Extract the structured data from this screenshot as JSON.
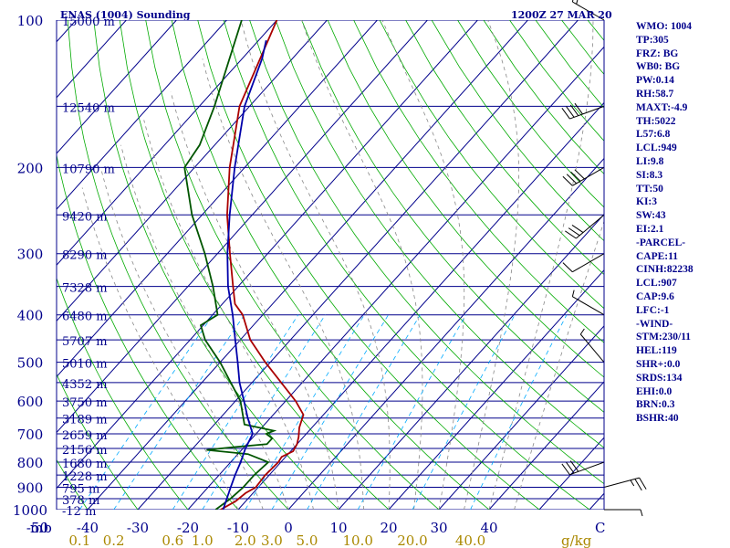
{
  "header": {
    "title": "ENAS (1004) Sounding",
    "time": "1200Z 27 MAR 20"
  },
  "colors": {
    "isobar": "#00008b",
    "isotherm": "#00008b",
    "dry_adiabat": "#00aa00",
    "moist_adiabat": "#888888",
    "mixing_ratio": "#00aaff",
    "temperature": "#aa0000",
    "dewpoint": "#005500",
    "parcel": "#0000aa",
    "labels": "#00008b",
    "mixing_labels": "#aa8800"
  },
  "stats": [
    "WMO: 1004",
    "TP:305",
    "FRZ: BG",
    "WB0: BG",
    "PW:0.14",
    "RH:58.7",
    "MAXT:-4.9",
    "TH:5022",
    "L57:6.8",
    "LCL:949",
    "LI:9.8",
    "SI:8.3",
    "TT:50",
    "KI:3",
    "SW:43",
    "EI:2.1",
    "-PARCEL-",
    "CAPE:11",
    "CINH:82238",
    "LCL:907",
    "CAP:9.6",
    "LFC:-1",
    "-WIND-",
    "STM:230/11",
    "HEL:119",
    "SHR+:0.0",
    "SRDS:134",
    "EHI:0.0",
    "BRN:0.3",
    "BSHR:40"
  ],
  "chart_data": {
    "type": "line",
    "title": "ENAS (1004) Sounding",
    "subtitle": "1200Z 27 MAR 20",
    "y_axis": {
      "label": "mb",
      "scale": "log",
      "range": [
        1000,
        100
      ],
      "ticks": [
        "100",
        "200",
        "300",
        "400",
        "500",
        "600",
        "700",
        "800",
        "900",
        "1000"
      ]
    },
    "x_axis": {
      "label": "C",
      "ticks": [
        "-50",
        "-40",
        "-30",
        "-20",
        "-10",
        "0",
        "10",
        "20",
        "30",
        "40"
      ]
    },
    "mixing_ratio_axis": {
      "label": "g/kg",
      "ticks": [
        "0.1",
        "0.2",
        "0.6",
        "1.0",
        "2.0",
        "3.0",
        "5.0",
        "10.0",
        "20.0",
        "40.0"
      ]
    },
    "height_labels": [
      {
        "p": 100,
        "label": "15000 m"
      },
      {
        "p": 150,
        "label": "12540 m"
      },
      {
        "p": 200,
        "label": "10790 m"
      },
      {
        "p": 250,
        "label": "9420 m"
      },
      {
        "p": 300,
        "label": "8290 m"
      },
      {
        "p": 350,
        "label": "7328 m"
      },
      {
        "p": 400,
        "label": "6480 m"
      },
      {
        "p": 450,
        "label": "5707 m"
      },
      {
        "p": 500,
        "label": "5010 m"
      },
      {
        "p": 550,
        "label": "4352 m"
      },
      {
        "p": 600,
        "label": "3750 m"
      },
      {
        "p": 650,
        "label": "3189 m"
      },
      {
        "p": 700,
        "label": "2659 m"
      },
      {
        "p": 750,
        "label": "2156 m"
      },
      {
        "p": 800,
        "label": "1680 m"
      },
      {
        "p": 850,
        "label": "1228 m"
      },
      {
        "p": 900,
        "label": "795 m"
      },
      {
        "p": 950,
        "label": "378 m"
      },
      {
        "p": 1000,
        "label": "-12 m"
      }
    ],
    "series": [
      {
        "points": [
          [
            1000,
            -13.5
          ],
          [
            960,
            -12.0
          ],
          [
            925,
            -11.5
          ],
          [
            900,
            -10.5
          ],
          [
            850,
            -10.8
          ],
          [
            800,
            -10.5
          ],
          [
            780,
            -10.8
          ],
          [
            760,
            -9.5
          ],
          [
            735,
            -10.0
          ],
          [
            710,
            -11.0
          ],
          [
            700,
            -11.5
          ],
          [
            680,
            -12.5
          ],
          [
            640,
            -14.0
          ],
          [
            600,
            -18.0
          ],
          [
            500,
            -31.0
          ],
          [
            450,
            -38.0
          ],
          [
            400,
            -44.0
          ],
          [
            380,
            -47.5
          ],
          [
            350,
            -51.0
          ],
          [
            300,
            -57.5
          ],
          [
            250,
            -65.0
          ],
          [
            200,
            -73.0
          ],
          [
            150,
            -82.0
          ],
          [
            100,
            -90.0
          ]
        ]
      },
      {
        "points": [
          [
            1000,
            -14.5
          ],
          [
            950,
            -13.5
          ],
          [
            900,
            -13.0
          ],
          [
            850,
            -13.0
          ],
          [
            800,
            -12.5
          ],
          [
            770,
            -18.0
          ],
          [
            755,
            -27.0
          ],
          [
            745,
            -22.0
          ],
          [
            735,
            -16.0
          ],
          [
            715,
            -16.0
          ],
          [
            700,
            -18.0
          ],
          [
            690,
            -17.0
          ],
          [
            670,
            -24.0
          ],
          [
            600,
            -29.0
          ],
          [
            500,
            -40.0
          ],
          [
            450,
            -47.0
          ],
          [
            420,
            -50.5
          ],
          [
            400,
            -49.0
          ],
          [
            350,
            -55.0
          ],
          [
            300,
            -62.5
          ],
          [
            250,
            -72.0
          ],
          [
            200,
            -82.0
          ],
          [
            180,
            -83.0
          ],
          [
            150,
            -87.0
          ],
          [
            100,
            -97.0
          ]
        ]
      },
      {
        "points": [
          [
            1000,
            -13.0
          ],
          [
            900,
            -15.5
          ],
          [
            850,
            -16.8
          ],
          [
            800,
            -18.0
          ],
          [
            750,
            -19.5
          ],
          [
            700,
            -20.7
          ],
          [
            650,
            -24.5
          ],
          [
            600,
            -28.3
          ],
          [
            550,
            -32.5
          ],
          [
            500,
            -36.5
          ],
          [
            450,
            -41.0
          ],
          [
            400,
            -46.0
          ],
          [
            350,
            -52.0
          ],
          [
            300,
            -58.0
          ],
          [
            250,
            -64.5
          ],
          [
            200,
            -72.0
          ],
          [
            150,
            -81.0
          ],
          [
            120,
            -86.0
          ],
          [
            110,
            -88.5
          ]
        ]
      }
    ],
    "wind_barbs": [
      {
        "p": 100,
        "dir": 300,
        "kt": 15
      },
      {
        "p": 150,
        "dir": 250,
        "kt": 40
      },
      {
        "p": 200,
        "dir": 240,
        "kt": 40
      },
      {
        "p": 250,
        "dir": 230,
        "kt": 30
      },
      {
        "p": 300,
        "dir": 240,
        "kt": 10
      },
      {
        "p": 400,
        "dir": 300,
        "kt": 5
      },
      {
        "p": 500,
        "dir": 320,
        "kt": 5
      },
      {
        "p": 800,
        "dir": 250,
        "kt": 30
      },
      {
        "p": 900,
        "dir": 75,
        "kt": 25
      },
      {
        "p": 1000,
        "dir": 90,
        "kt": 5
      }
    ]
  }
}
